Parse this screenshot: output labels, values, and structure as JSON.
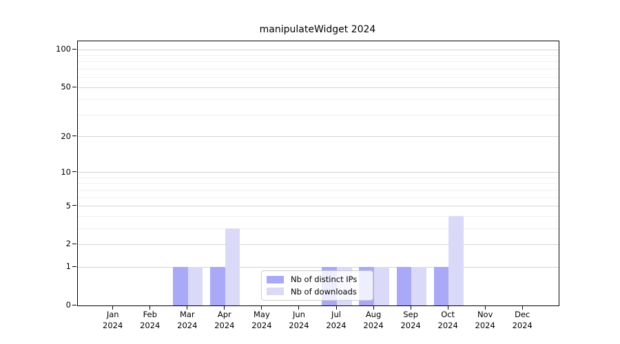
{
  "chart_data": {
    "type": "bar",
    "title": "manipulateWidget 2024",
    "x_categories": [
      "Jan",
      "Feb",
      "Mar",
      "Apr",
      "May",
      "Jun",
      "Jul",
      "Aug",
      "Sep",
      "Oct",
      "Nov",
      "Dec"
    ],
    "x_year": "2024",
    "series": [
      {
        "name": "Nb of distinct IPs",
        "color": "#a9a9f7",
        "values": [
          0,
          0,
          1,
          1,
          0,
          0,
          1,
          1,
          1,
          1,
          0,
          0
        ]
      },
      {
        "name": "Nb of downloads",
        "color": "#dadaf8",
        "values": [
          0,
          0,
          1,
          3,
          0,
          0,
          1,
          1,
          1,
          4,
          0,
          0
        ]
      }
    ],
    "y_scale": "log1p",
    "ylim": [
      0,
      100
    ],
    "y_major_ticks": [
      0,
      1,
      2,
      5,
      10,
      20,
      50,
      100
    ],
    "y_minor_gridlines": [
      3,
      4,
      6,
      7,
      8,
      9,
      30,
      40,
      60,
      70,
      80,
      90
    ],
    "grid": true,
    "legend_position": "lower center"
  },
  "colors": {
    "major_grid": "#d4d4d4",
    "minor_grid": "#efefef",
    "spine": "#000000",
    "legend_border": "#cccccc"
  }
}
